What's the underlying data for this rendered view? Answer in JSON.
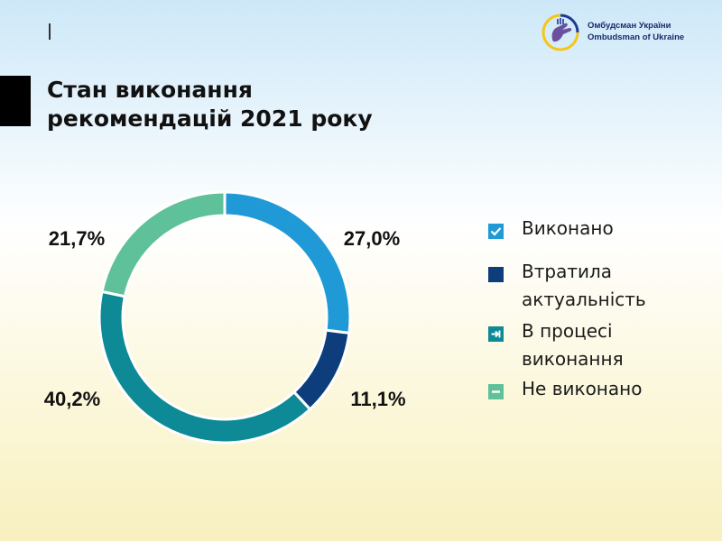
{
  "logo": {
    "line1": "Омбудсман України",
    "line2": "Ombudsman of Ukraine",
    "colors": {
      "blue": "#1f3a93",
      "yellow": "#f5c518",
      "purple": "#6b4fa0"
    }
  },
  "title": {
    "line1": "Стан виконання",
    "line2": "рекомендацій 2021 року"
  },
  "chart_data": {
    "type": "pie",
    "title": "Стан виконання рекомендацій 2021 року",
    "donut": true,
    "legend_position": "right",
    "slices": [
      {
        "label": "Виконано",
        "value": 27.0,
        "display": "27,0%",
        "color": "#1f9ad6",
        "icon": "check-icon"
      },
      {
        "label": "Втратила актуальність",
        "value": 11.1,
        "display": "11,1%",
        "color": "#0d3d7a",
        "icon": "square-icon"
      },
      {
        "label": "В процесі виконання",
        "value": 40.2,
        "display": "40,2%",
        "color": "#0e8a96",
        "icon": "arrow-right-icon"
      },
      {
        "label": "Не виконано",
        "value": 21.7,
        "display": "21,7%",
        "color": "#5ec199",
        "icon": "minus-icon"
      }
    ]
  },
  "legend": {
    "items": [
      {
        "line1": "Виконано",
        "line2": ""
      },
      {
        "line1": "Втратила",
        "line2": "актуальність"
      },
      {
        "line1": "В процесі",
        "line2": "виконання"
      },
      {
        "line1": "Не виконано",
        "line2": ""
      }
    ]
  }
}
